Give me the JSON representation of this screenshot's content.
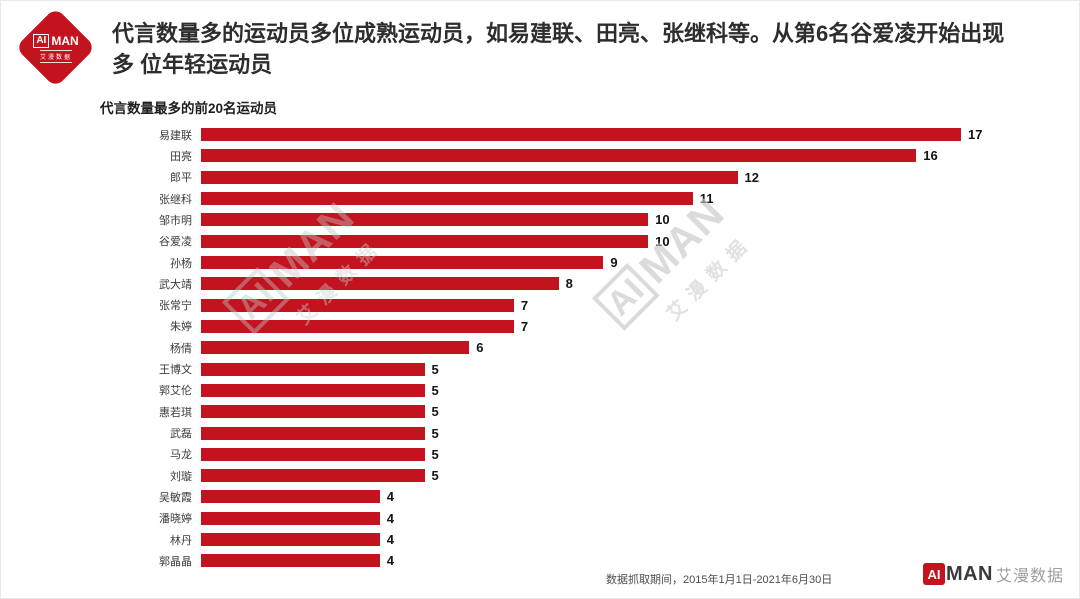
{
  "header": {
    "logo": {
      "ai": "AI",
      "man": "MAN",
      "subtext": "艾漫数据"
    },
    "title_line1": "代言数量多的运动员多位成熟运动员，如易建联、田亮、张继科等。从第6名谷爱凌开始出现",
    "title_line2": "多 位年轻运动员"
  },
  "chart_data": {
    "type": "bar",
    "orientation": "horizontal",
    "title": "代言数量最多的前20名运动员",
    "categories": [
      "易建联",
      "田亮",
      "郎平",
      "张继科",
      "邹市明",
      "谷爱凌",
      "孙杨",
      "武大靖",
      "张常宁",
      "朱婷",
      "杨倩",
      "王博文",
      "郭艾伦",
      "惠若琪",
      "武磊",
      "马龙",
      "刘璇",
      "吴敏霞",
      "潘晓婷",
      "林丹",
      "郭晶晶"
    ],
    "values": [
      17,
      16,
      12,
      11,
      10,
      10,
      9,
      8,
      7,
      7,
      6,
      5,
      5,
      5,
      5,
      5,
      5,
      4,
      4,
      4,
      4
    ],
    "xlim": [
      0,
      17
    ],
    "xlabel": "",
    "ylabel": "",
    "grid": false,
    "legend": "none",
    "value_labels_shown": true,
    "bar_color": "#C2131F"
  },
  "watermark": {
    "ai": "AI",
    "man": "MAN",
    "subtext": "艾漫数据"
  },
  "footer": {
    "note": "数据抓取期间，2015年1月1日-2021年6月30日",
    "logo": {
      "ai": "AI",
      "man": "MAN",
      "subtext": "艾漫数据"
    }
  },
  "colors": {
    "bar": "#C2131F",
    "brand_red": "#C2131F",
    "title_text": "#2d2d2d",
    "watermark_gray": "#c6c6c6"
  }
}
